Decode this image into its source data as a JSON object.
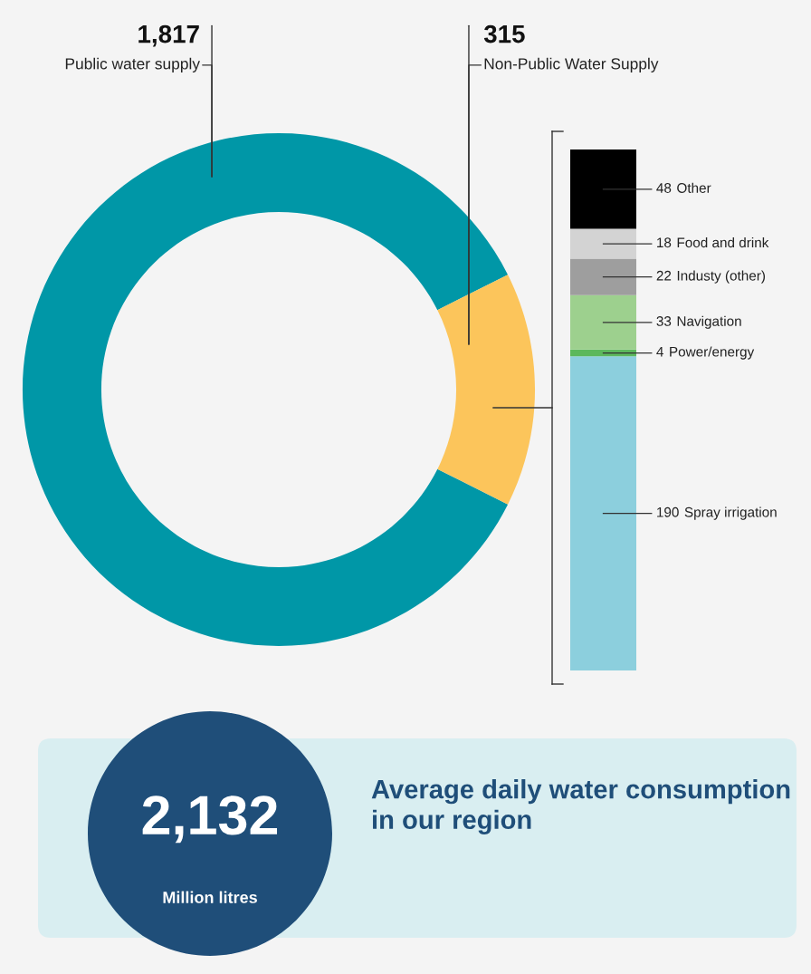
{
  "chart_data": [
    {
      "type": "donut",
      "categories": [
        "Public water supply",
        "Non-Public Water Supply"
      ],
      "values": [
        1817,
        315
      ],
      "colors": [
        "#0097a7",
        "#fcc55b"
      ],
      "value_labels": [
        "1,817",
        "315"
      ]
    },
    {
      "type": "bar",
      "stacked": true,
      "categories": [
        null
      ],
      "data_labels": true,
      "tick_labels": false,
      "series": [
        {
          "name": "Spray irrigation",
          "color": "#8ccfdd",
          "values": [
            190
          ]
        },
        {
          "name": "Power/energy",
          "color": "#5cb85c",
          "values": [
            4
          ]
        },
        {
          "name": "Navigation",
          "color": "#9dd08e",
          "values": [
            33
          ]
        },
        {
          "name": "Industy (other)",
          "color": "#9e9e9e",
          "values": [
            22
          ]
        },
        {
          "name": "Food and drink",
          "color": "#d3d3d3",
          "values": [
            18
          ]
        },
        {
          "name": "Other",
          "color": "#000000",
          "values": [
            48
          ]
        }
      ]
    },
    {
      "type": "other",
      "title": "Average daily water consumption in our region",
      "annotations": [
        "2,132",
        "Million litres"
      ]
    }
  ]
}
